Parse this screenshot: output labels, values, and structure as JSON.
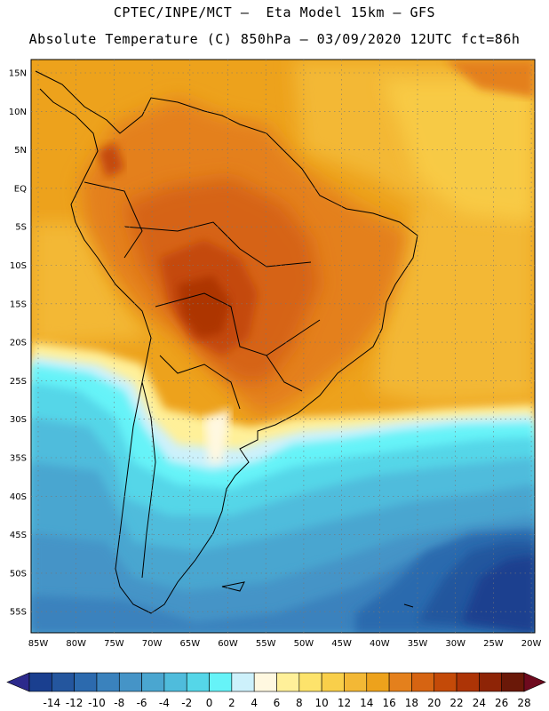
{
  "header": {
    "line1": "CPTEC/INPE/MCT –  Eta Model 15km – GFS",
    "line2": "Absolute Temperature (C) 850hPa – 03/09/2020 12UTC fct=86h"
  },
  "map": {
    "lat_labels": [
      "15N",
      "10N",
      "5N",
      "EQ",
      "5S",
      "10S",
      "15S",
      "20S",
      "25S",
      "30S",
      "35S",
      "40S",
      "45S",
      "50S",
      "55S"
    ],
    "lon_labels": [
      "85W",
      "80W",
      "75W",
      "70W",
      "65W",
      "60W",
      "55W",
      "50W",
      "45W",
      "40W",
      "35W",
      "30W",
      "25W",
      "20W"
    ]
  },
  "colorbar": {
    "labels": [
      "-14",
      "-12",
      "-10",
      "-8",
      "-6",
      "-4",
      "-2",
      "0",
      "2",
      "4",
      "6",
      "8",
      "10",
      "12",
      "14",
      "16",
      "18",
      "20",
      "22",
      "24",
      "26",
      "28"
    ],
    "colors": [
      "#1a3f8f",
      "#24569e",
      "#2c6aae",
      "#3a82bd",
      "#4594c7",
      "#4aa6d0",
      "#4fbcdc",
      "#55d6e8",
      "#66f3f8",
      "#cdf1fb",
      "#fff8e0",
      "#fff099",
      "#fde36b",
      "#f9cf4a",
      "#f3b835",
      "#eda21c",
      "#e4801c",
      "#d66412",
      "#c44a08",
      "#ad3406",
      "#8e2406",
      "#6a1808"
    ],
    "low_arrow_color": "#2c2a8c",
    "high_arrow_color": "#6e0a1e"
  },
  "palette": {
    "ocean_warm": "#eda21c",
    "ocean_mid": "#f3b835",
    "land_hot": "#d66412",
    "land_hotter": "#c44a08",
    "land_hottest": "#ad3406"
  }
}
